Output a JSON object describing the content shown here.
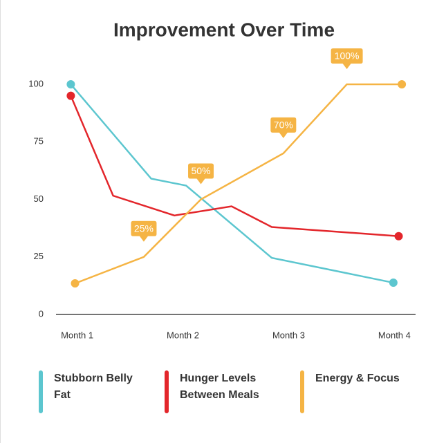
{
  "chart_data": {
    "type": "line",
    "title": "Improvement Over Time",
    "xlim": [
      0.8,
      4.2
    ],
    "xticks": [
      {
        "value": 1,
        "label": "Month 1"
      },
      {
        "value": 2,
        "label": "Month 2"
      },
      {
        "value": 3,
        "label": "Month 3"
      },
      {
        "value": 4,
        "label": "Month 4"
      }
    ],
    "ylim": [
      0,
      100
    ],
    "yticks": [
      0,
      25,
      50,
      75,
      100
    ],
    "grid": false,
    "legend": "bottom",
    "series": [
      {
        "name": "Stubborn Belly Fat",
        "color": "#5cc6cf",
        "x": [
          0.94,
          1.7,
          2.03,
          2.84,
          3.99
        ],
        "values": [
          100,
          59,
          56,
          24.6,
          13.8
        ]
      },
      {
        "name": "Hunger Levels Between Meals",
        "color": "#e3262b",
        "x": [
          0.94,
          1.34,
          1.92,
          2.46,
          2.84,
          4.04
        ],
        "values": [
          95,
          51.6,
          43,
          47,
          38,
          34
        ]
      },
      {
        "name": "Energy & Focus",
        "color": "#f5b444",
        "x": [
          0.98,
          1.63,
          2.17,
          2.95,
          3.55,
          4.07
        ],
        "values": [
          13.5,
          25,
          50,
          70,
          100,
          100
        ],
        "value_labels": [
          null,
          "25%",
          "50%",
          "70%",
          "100%",
          null
        ]
      }
    ]
  }
}
